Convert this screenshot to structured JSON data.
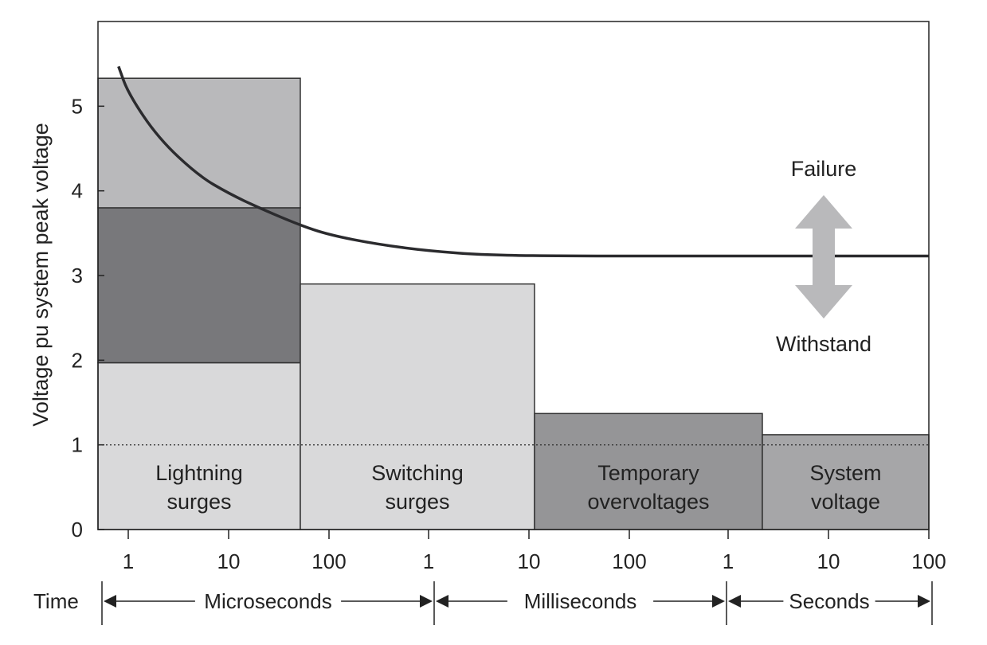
{
  "chart_data": {
    "type": "bar",
    "title": "",
    "ylabel": "Voltage pu system peak voltage",
    "ylim": [
      0,
      6
    ],
    "yticks": [
      "0",
      "1",
      "2",
      "3",
      "4",
      "5"
    ],
    "x_scale": "log (per time unit)",
    "x_tick_labels": [
      "1",
      "10",
      "100",
      "1",
      "10",
      "100",
      "1",
      "10",
      "100"
    ],
    "time_row_label": "Time",
    "time_units": [
      "Microseconds",
      "Milliseconds",
      "Seconds"
    ],
    "regions": [
      {
        "label_line1": "Lightning",
        "label_line2": "surges",
        "bands": [
          {
            "from": 0,
            "to": 1.97,
            "color": "#d9d9da"
          },
          {
            "from": 1.97,
            "to": 3.8,
            "color": "#78787b"
          },
          {
            "from": 3.8,
            "to": 5.33,
            "color": "#b9b9bb"
          }
        ]
      },
      {
        "label_line1": "Switching",
        "label_line2": "surges",
        "bands": [
          {
            "from": 0,
            "to": 2.9,
            "color": "#d9d9da"
          }
        ]
      },
      {
        "label_line1": "Temporary",
        "label_line2": "overvoltages",
        "bands": [
          {
            "from": 0,
            "to": 1.37,
            "color": "#959597"
          }
        ]
      },
      {
        "label_line1": "System",
        "label_line2": "voltage",
        "bands": [
          {
            "from": 0,
            "to": 1.12,
            "color": "#a6a6a8"
          }
        ]
      }
    ],
    "reference_line": {
      "y": 1,
      "style": "dotted"
    },
    "withstand_curve": [
      {
        "t": "0.8 µs",
        "v": 5.47
      },
      {
        "t": "1 µs",
        "v": 5.15
      },
      {
        "t": "2 µs",
        "v": 4.62
      },
      {
        "t": "5 µs",
        "v": 4.18
      },
      {
        "t": "10 µs",
        "v": 3.97
      },
      {
        "t": "20 µs",
        "v": 3.8
      },
      {
        "t": "50 µs",
        "v": 3.6
      },
      {
        "t": "100 µs",
        "v": 3.48
      },
      {
        "t": "300 µs",
        "v": 3.37
      },
      {
        "t": "1 ms",
        "v": 3.29
      },
      {
        "t": "4 ms",
        "v": 3.24
      },
      {
        "t": "30 ms",
        "v": 3.23
      },
      {
        "t": "1 s",
        "v": 3.23
      },
      {
        "t": "100 s",
        "v": 3.23
      }
    ],
    "annotations": {
      "upper": "Failure",
      "lower": "Withstand"
    },
    "colors": {
      "curve": "#2b2b2e",
      "arrow": "#b9b9bb",
      "axis": "#222222"
    }
  }
}
